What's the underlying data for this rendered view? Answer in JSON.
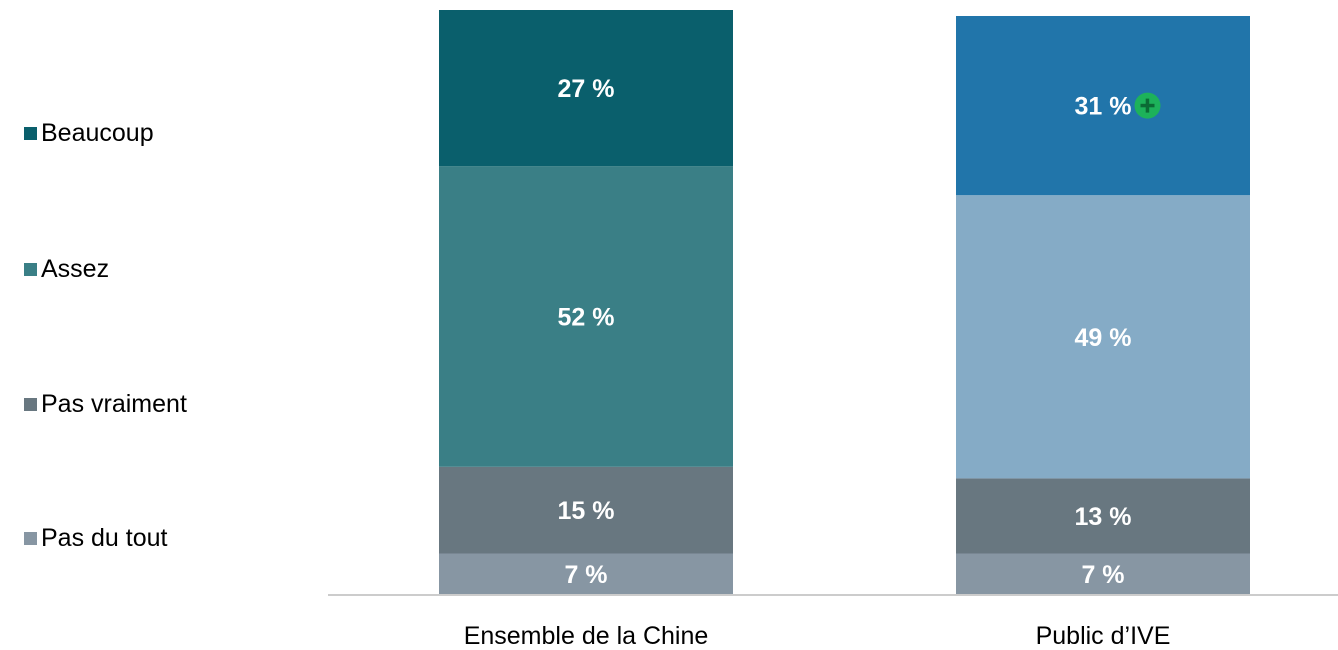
{
  "chart_data": {
    "type": "bar",
    "stacked": true,
    "categories": [
      "Ensemble de la Chine",
      "Public d’IVE"
    ],
    "series": [
      {
        "name": "Pas du tout",
        "values": [
          7,
          7
        ]
      },
      {
        "name": "Pas vraiment",
        "values": [
          15,
          13
        ]
      },
      {
        "name": "Assez",
        "values": [
          52,
          49
        ]
      },
      {
        "name": "Beaucoup",
        "values": [
          27,
          31
        ]
      }
    ],
    "value_labels": [
      [
        "7 %",
        "7 %"
      ],
      [
        "15 %",
        "13 %"
      ],
      [
        "52 %",
        "49 %"
      ],
      [
        "27 %",
        "31 %"
      ]
    ],
    "bar_colors": [
      [
        "#8796a3",
        "#8796a3"
      ],
      [
        "#687780",
        "#687780"
      ],
      [
        "#3a7f86",
        "#85abc6"
      ],
      [
        "#0a5f6c",
        "#2175aa"
      ]
    ],
    "legend_colors": {
      "Beaucoup": "#0a5f6c",
      "Assez": "#3a7f86",
      "Pas vraiment": "#687780",
      "Pas du tout": "#8796a3"
    },
    "legend_order": [
      "Beaucoup",
      "Assez",
      "Pas vraiment",
      "Pas du tout"
    ],
    "legend_position": "left",
    "annotation": {
      "category": "Public d’IVE",
      "series": "Beaucoup",
      "icon": "plus-circle-icon",
      "color": "#1db25a"
    },
    "axis_color": "#cccccc",
    "grid": false
  }
}
